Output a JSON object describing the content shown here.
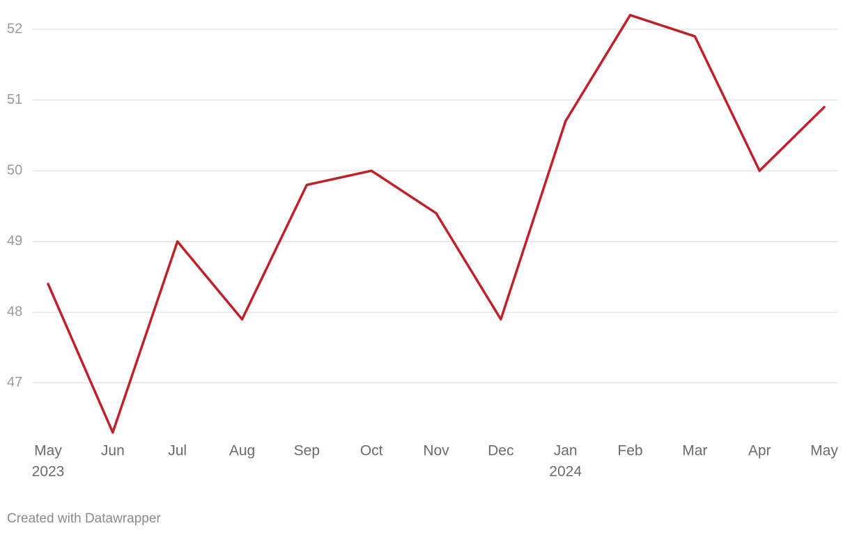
{
  "chart_data": {
    "type": "line",
    "categories": [
      "May",
      "Jun",
      "Jul",
      "Aug",
      "Sep",
      "Oct",
      "Nov",
      "Dec",
      "Jan",
      "Feb",
      "Mar",
      "Apr",
      "May"
    ],
    "years": [
      "2023",
      null,
      null,
      null,
      null,
      null,
      null,
      null,
      "2024",
      null,
      null,
      null,
      null
    ],
    "series": [
      {
        "name": "Value",
        "color": "#c0202a",
        "values": [
          48.4,
          46.3,
          49.0,
          47.9,
          49.8,
          50.0,
          49.4,
          47.9,
          50.7,
          52.2,
          51.9,
          50.0,
          50.9
        ]
      }
    ],
    "ylim": [
      46.2,
      52.4
    ],
    "yticks": [
      47,
      48,
      49,
      50,
      51,
      52
    ],
    "grid": true,
    "footer": "Created with Datawrapper"
  }
}
